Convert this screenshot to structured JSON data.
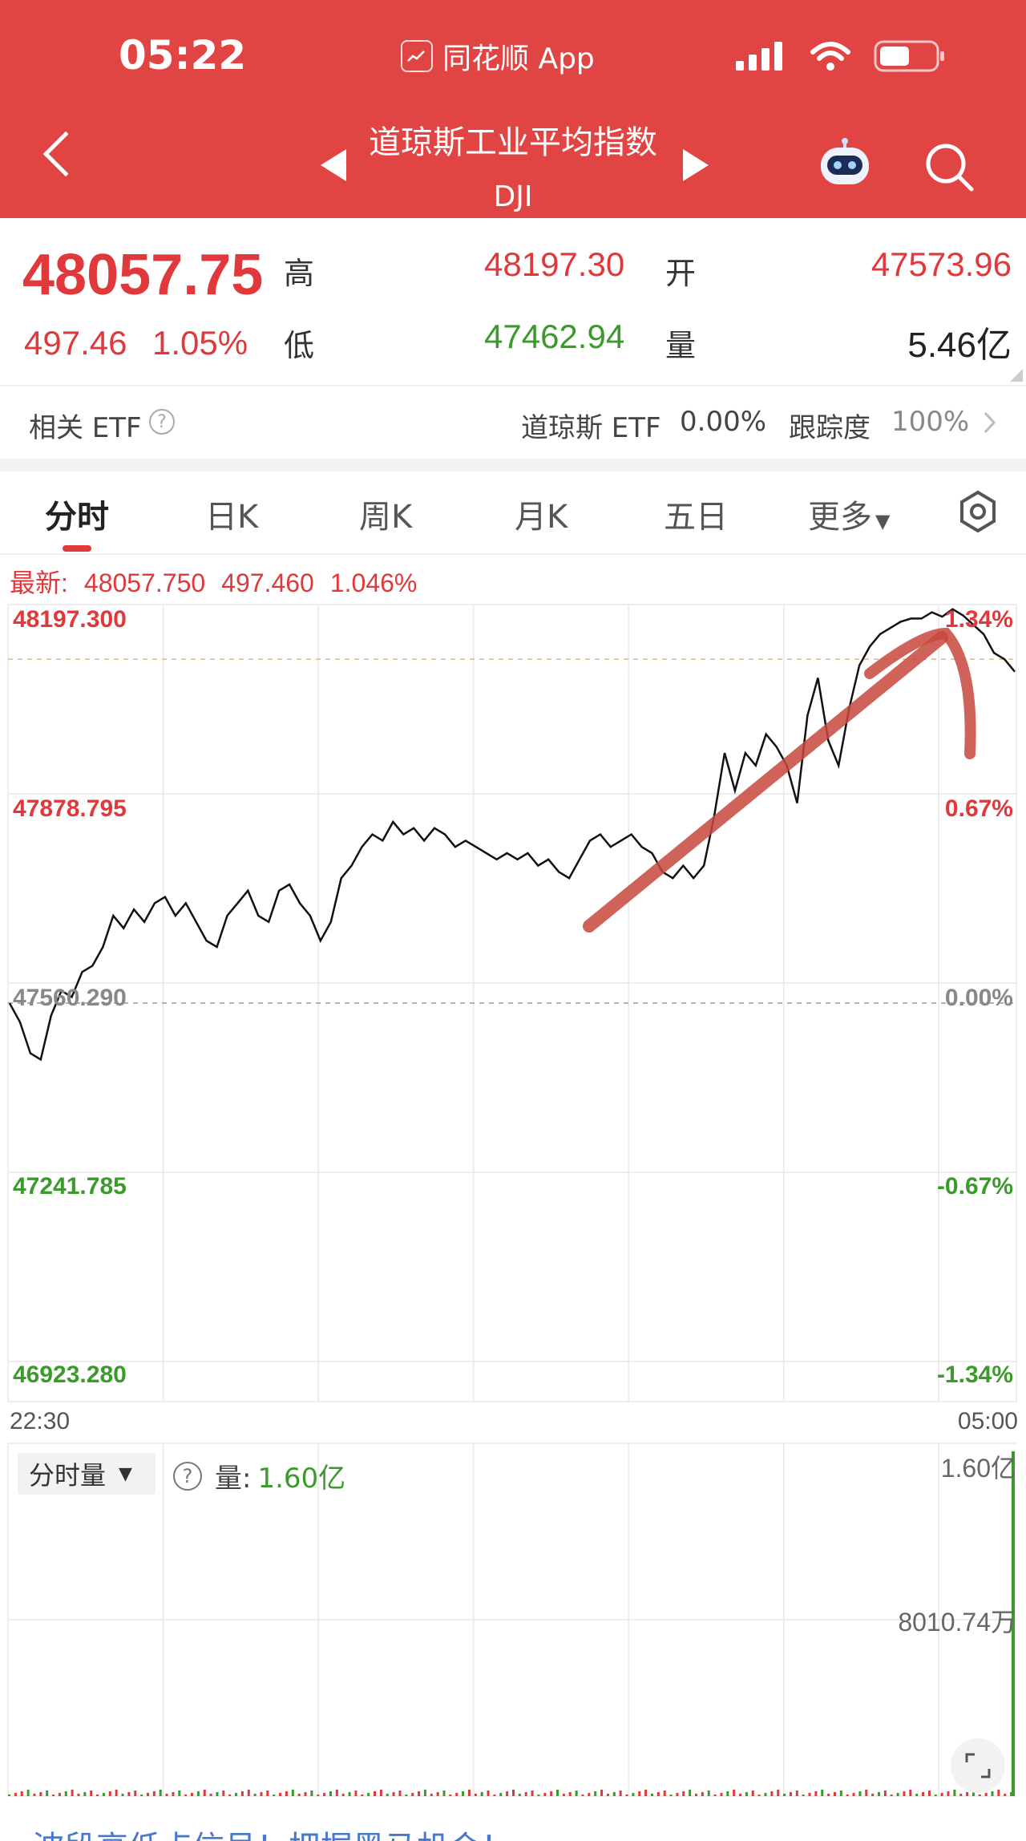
{
  "status_bar": {
    "time": "05:22",
    "app_name": "同花顺 App"
  },
  "header": {
    "title": "道琼斯工业平均指数",
    "code": "DJI"
  },
  "quote": {
    "price": "48057.75",
    "change": "497.46",
    "change_pct": "1.05%",
    "high_label": "高",
    "high": "48197.30",
    "low_label": "低",
    "low": "47462.94",
    "open_label": "开",
    "open": "47573.96",
    "volume_label": "量",
    "volume": "5.46亿"
  },
  "etf": {
    "label": "相关 ETF",
    "name": "道琼斯 ETF",
    "value": "0.00%",
    "track_label": "跟踪度",
    "track_value": "100%"
  },
  "tabs": [
    "分时",
    "日K",
    "周K",
    "月K",
    "五日",
    "更多"
  ],
  "latest": {
    "label": "最新:",
    "price": "48057.750",
    "change": "497.460",
    "change_pct": "1.046%"
  },
  "chart_data": {
    "type": "line",
    "y_left_labels": [
      "48197.300",
      "47878.795",
      "47560.290",
      "47241.785",
      "46923.280"
    ],
    "y_right_labels": [
      "1.34%",
      "0.67%",
      "0.00%",
      "-0.67%",
      "-1.34%"
    ],
    "x_labels": [
      "22:30",
      "05:00"
    ],
    "ylim": [
      46923.28,
      48197.3
    ],
    "prev_close": 47560.29,
    "series": [
      {
        "values": [
          47560,
          47530,
          47480,
          47470,
          47540,
          47580,
          47570,
          47610,
          47620,
          47650,
          47700,
          47680,
          47710,
          47690,
          47720,
          47730,
          47700,
          47720,
          47690,
          47660,
          47650,
          47700,
          47720,
          47740,
          47700,
          47690,
          47740,
          47750,
          47720,
          47700,
          47660,
          47690,
          47760,
          47780,
          47810,
          47830,
          47820,
          47850,
          47830,
          47840,
          47820,
          47840,
          47830,
          47810,
          47820,
          47810,
          47800,
          47790,
          47800,
          47790,
          47800,
          47780,
          47790,
          47770,
          47760,
          47790,
          47820,
          47830,
          47810,
          47820,
          47830,
          47810,
          47800,
          47770,
          47760,
          47780,
          47760,
          47780,
          47860,
          47960,
          47900,
          47960,
          47940,
          47990,
          47970,
          47940,
          47880,
          48020,
          48080,
          47980,
          47940,
          48030,
          48100,
          48130,
          48150,
          48160,
          48170,
          48175,
          48175,
          48185,
          48178,
          48190,
          48180,
          48165,
          48150,
          48120,
          48110,
          48090
        ]
      }
    ]
  },
  "volume": {
    "selector_label": "分时量",
    "label": "量:",
    "value": "1.60亿",
    "y_top": "1.60亿",
    "y_mid": "8010.74万"
  },
  "bottom_ad": "波段高低点信号！把握黑马机会！"
}
